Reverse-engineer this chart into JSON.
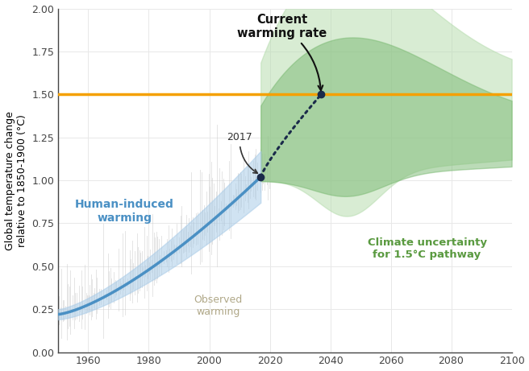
{
  "xlim": [
    1950,
    2100
  ],
  "ylim": [
    0.0,
    2.0
  ],
  "xticks": [
    1960,
    1980,
    2000,
    2020,
    2040,
    2060,
    2080,
    2100
  ],
  "yticks": [
    0.0,
    0.25,
    0.5,
    0.75,
    1.0,
    1.25,
    1.5,
    1.75,
    2.0
  ],
  "ylabel": "Global temperature change\nrelative to 1850-1900 (°C)",
  "orange_line_y": 1.5,
  "orange_color": "#F5A000",
  "human_warming_color": "#4a90c4",
  "human_warming_band_color": "#aacce8",
  "observed_color": "#c8c8c8",
  "dotted_line_color": "#1a2a4a",
  "green_band_outer_color": "#b8ddb0",
  "green_band_inner_color": "#78b870",
  "background_color": "#ffffff",
  "grid_color": "#e8e8e8",
  "label_human_induced": "Human-induced\nwarming",
  "label_observed": "Observed\nwarming",
  "label_climate_uncertainty": "Climate uncertainty\nfor 1.5°C pathway",
  "label_current_warming": "Current\nwarming rate",
  "label_2017": "2017"
}
